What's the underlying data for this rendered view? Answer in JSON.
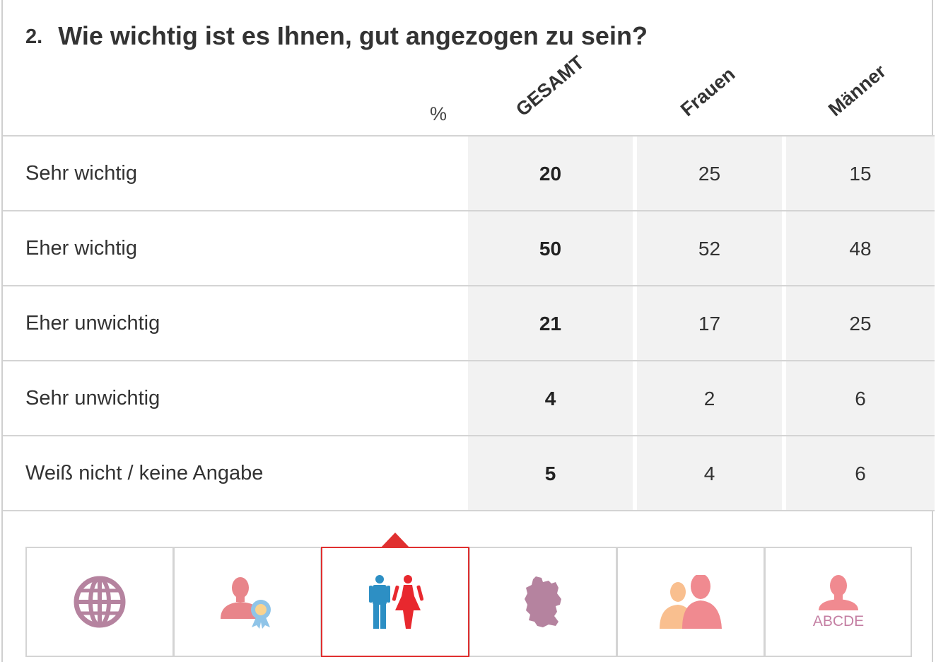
{
  "question": {
    "number": "2.",
    "text": "Wie wichtig ist es Ihnen, gut angezogen zu sein?"
  },
  "table": {
    "unit_label": "%",
    "columns": [
      "GESAMT",
      "Frauen",
      "Männer"
    ],
    "rows": [
      {
        "label": "Sehr wichtig",
        "values": [
          "20",
          "25",
          "15"
        ]
      },
      {
        "label": "Eher wichtig",
        "values": [
          "50",
          "52",
          "48"
        ]
      },
      {
        "label": "Eher unwichtig",
        "values": [
          "21",
          "17",
          "25"
        ]
      },
      {
        "label": "Sehr unwichtig",
        "values": [
          "4",
          "2",
          "6"
        ]
      },
      {
        "label": "Weiß nicht / keine Angabe",
        "values": [
          "5",
          "4",
          "6"
        ]
      }
    ]
  },
  "filter_tabs": {
    "active_index": 2,
    "items": [
      {
        "icon": "globe-icon"
      },
      {
        "icon": "person-award-icon"
      },
      {
        "icon": "man-woman-icon"
      },
      {
        "icon": "germany-map-icon"
      },
      {
        "icon": "two-people-icon"
      },
      {
        "icon": "person-abcde-icon",
        "text": "ABCDE"
      }
    ]
  },
  "colors": {
    "active_border": "#e03030",
    "globe": "#b5839f",
    "person_red": "#e8858a",
    "ribbon": "#8fc4e8",
    "male_blue": "#2d8fc4",
    "female_red": "#e8282e",
    "germany": "#b5839f",
    "person_orange": "#f9bf8f",
    "person_pink": "#f08a90",
    "abcde_text": "#c47fa3"
  }
}
